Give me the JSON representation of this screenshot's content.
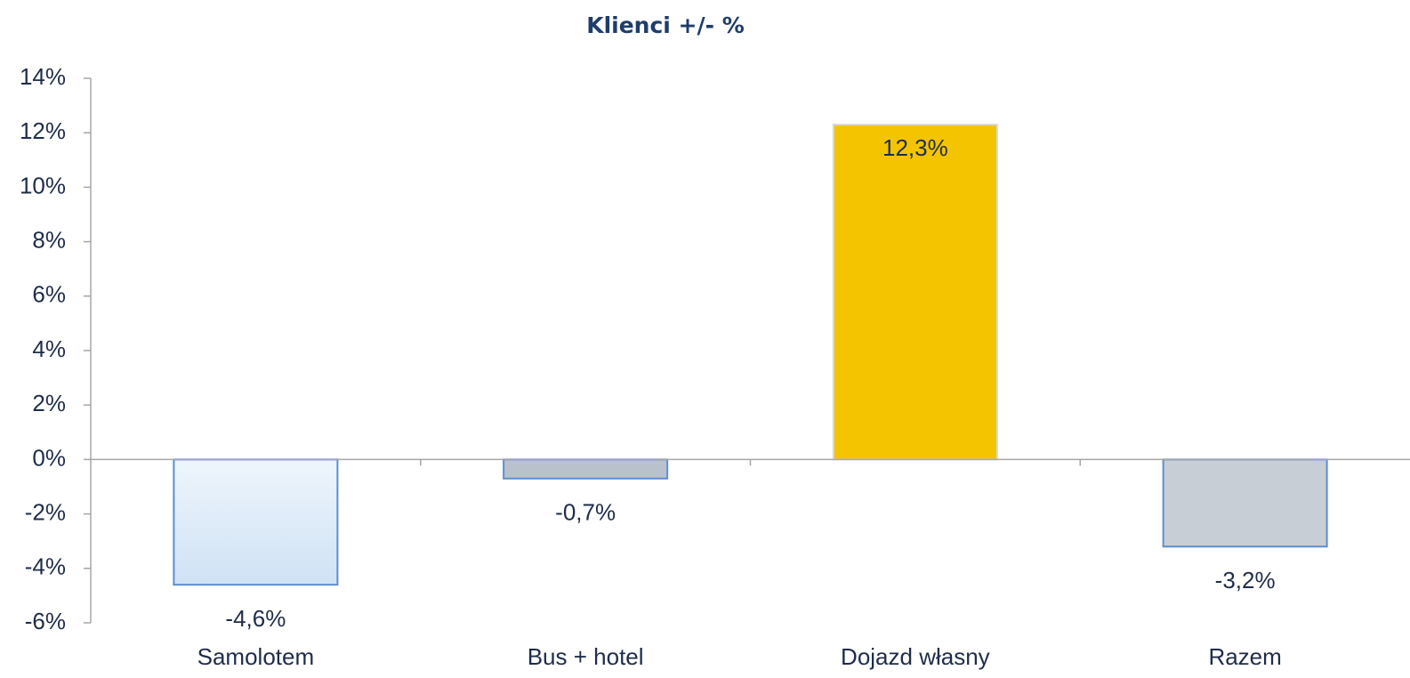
{
  "chart_data": {
    "type": "bar",
    "title": "Klienci +/- %",
    "categories": [
      "Samolotem",
      "Bus + hotel",
      "Dojazd własny",
      "Razem"
    ],
    "values": [
      -4.6,
      -0.7,
      12.3,
      -3.2
    ],
    "value_labels": [
      "-4,6%",
      "-0,7%",
      "12,3%",
      "-3,2%"
    ],
    "colors": [
      "#dbe9f7",
      "#b9c2cc",
      "#f5c400",
      "#c8ced6"
    ],
    "ylim": [
      -6,
      14
    ],
    "yticks": [
      {
        "value": -6,
        "label": "-6%"
      },
      {
        "value": -4,
        "label": "-4%"
      },
      {
        "value": -2,
        "label": "-2%"
      },
      {
        "value": 0,
        "label": "0%"
      },
      {
        "value": 2,
        "label": "2%"
      },
      {
        "value": 4,
        "label": "4%"
      },
      {
        "value": 6,
        "label": "6%"
      },
      {
        "value": 8,
        "label": "8%"
      },
      {
        "value": 10,
        "label": "10%"
      },
      {
        "value": 12,
        "label": "12%"
      },
      {
        "value": 14,
        "label": "14%"
      }
    ],
    "grid": false
  }
}
